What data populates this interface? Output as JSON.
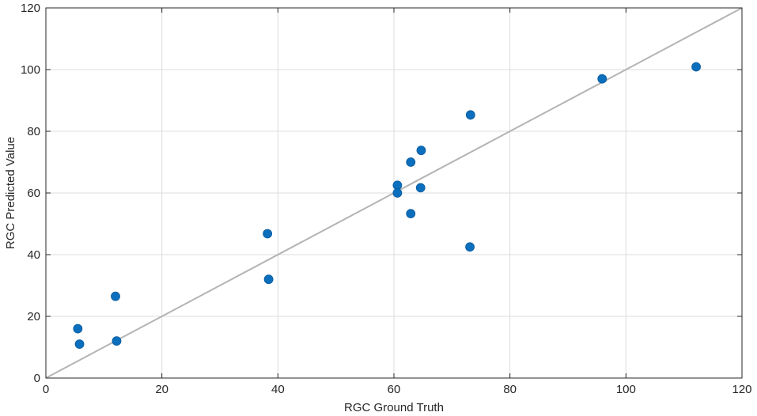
{
  "chart_data": {
    "type": "scatter",
    "title": "",
    "xlabel": "RGC Ground Truth",
    "ylabel": "RGC Predicted Value",
    "xlim": [
      0,
      120
    ],
    "ylim": [
      0,
      120
    ],
    "xticks": [
      0,
      20,
      40,
      60,
      80,
      100,
      120
    ],
    "yticks": [
      0,
      20,
      40,
      60,
      80,
      100,
      120
    ],
    "grid": true,
    "reference_line": {
      "type": "identity",
      "from": [
        0,
        0
      ],
      "to": [
        120,
        120
      ],
      "color": "#b4b4b4"
    },
    "series": [
      {
        "color": "#0b6fbd",
        "points": [
          {
            "x": 5.5,
            "y": 16
          },
          {
            "x": 5.8,
            "y": 11
          },
          {
            "x": 12,
            "y": 26.5
          },
          {
            "x": 12.2,
            "y": 12
          },
          {
            "x": 38.2,
            "y": 46.8
          },
          {
            "x": 38.4,
            "y": 32
          },
          {
            "x": 60.6,
            "y": 62.5
          },
          {
            "x": 60.6,
            "y": 60
          },
          {
            "x": 62.9,
            "y": 70
          },
          {
            "x": 62.9,
            "y": 53.3
          },
          {
            "x": 64.7,
            "y": 73.8
          },
          {
            "x": 64.6,
            "y": 61.7
          },
          {
            "x": 73.2,
            "y": 85.3
          },
          {
            "x": 73.1,
            "y": 42.5
          },
          {
            "x": 95.9,
            "y": 97
          },
          {
            "x": 112.1,
            "y": 100.9
          }
        ]
      }
    ]
  }
}
